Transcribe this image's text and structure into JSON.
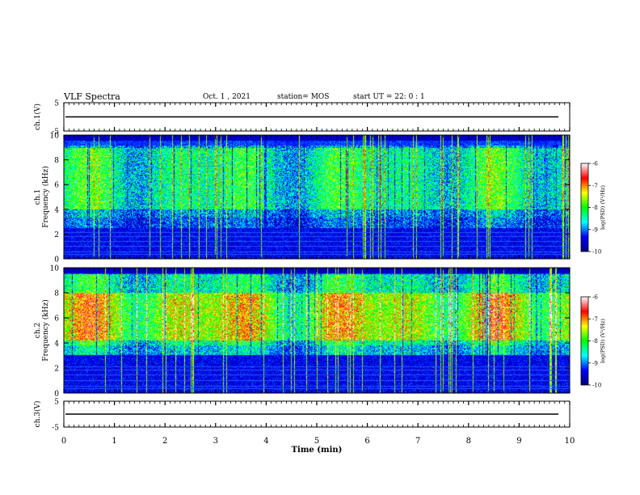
{
  "header": {
    "title": "VLF Spectra",
    "date": "Oct. 1  , 2021",
    "station": "station= MOS",
    "start": "start  UT  =   22: 0  : 1"
  },
  "chart_data": {
    "type": "heatmap",
    "xlabel": "Time  (min)",
    "xlim": [
      0,
      10
    ],
    "xticks": [
      "0",
      "1",
      "2",
      "3",
      "4",
      "5",
      "6",
      "7",
      "8",
      "9",
      "10"
    ],
    "panels": [
      {
        "id": "ch1-waveform",
        "type": "line",
        "ylabel": "ch.1(V)",
        "ylim": [
          -5,
          5
        ],
        "yticks": [
          "5",
          "-5"
        ],
        "trace_level": 0
      },
      {
        "id": "ch1-spectrogram",
        "type": "heatmap",
        "ylabel_top": "ch.1",
        "ylabel": "Frequency  (kHz)",
        "ylim": [
          0,
          10
        ],
        "yticks": [
          "0",
          "2",
          "4",
          "6",
          "8",
          "10"
        ],
        "band_khz": [
          2.5,
          9.2
        ],
        "band_core_khz": [
          4,
          9
        ],
        "base_level": 0.55
      },
      {
        "id": "ch2-spectrogram",
        "type": "heatmap",
        "ylabel_top": "ch.2",
        "ylabel": "Frequency  (kHz)",
        "ylim": [
          0,
          10
        ],
        "yticks": [
          "0",
          "2",
          "4",
          "6",
          "8",
          "10"
        ],
        "band_khz": [
          3,
          9.5
        ],
        "band_core_khz": [
          4.2,
          8
        ],
        "base_level": 0.8
      },
      {
        "id": "ch3-waveform",
        "type": "line",
        "ylabel": "ch.3(V)",
        "ylim": [
          -5,
          5
        ],
        "yticks": [
          "5",
          "-5"
        ],
        "trace_level": 0
      }
    ],
    "colorbar": {
      "label": "log(PSD) (V²/Hz)",
      "range": [
        -10,
        -6
      ],
      "ticks": [
        "-6",
        "-7",
        "-8",
        "-9",
        "-10"
      ],
      "colormap": [
        "#000080",
        "#0000ff",
        "#00ffff",
        "#00ff00",
        "#ffff00",
        "#ff0000",
        "#ffffff"
      ]
    }
  }
}
